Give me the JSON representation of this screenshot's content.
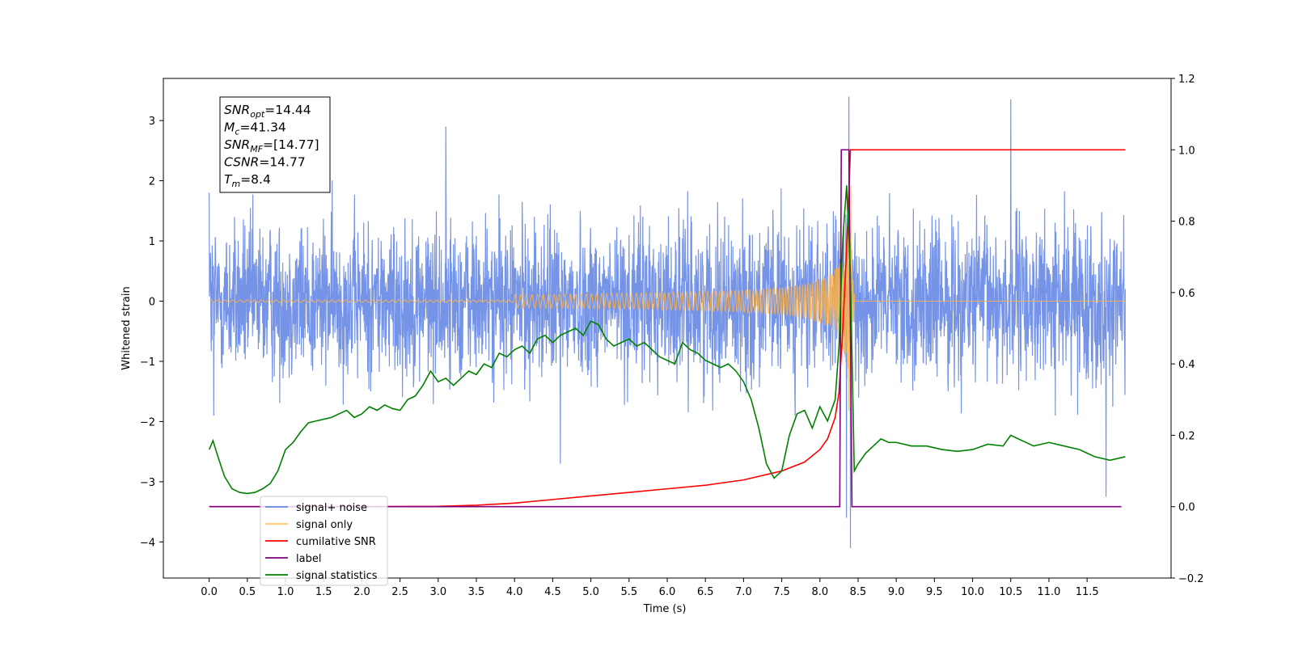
{
  "chart_data": {
    "type": "line",
    "title": "",
    "xlabel": "Time (s)",
    "ylabel": "Whitened strain",
    "xlim": [
      -0.6,
      12.6
    ],
    "ylim": [
      -4.6,
      3.7
    ],
    "y2lim": [
      -0.2,
      1.2
    ],
    "grid": false,
    "legend_position": "lower-left",
    "x_ticks": [
      0.0,
      0.5,
      1.0,
      1.5,
      2.0,
      2.5,
      3.0,
      3.5,
      4.0,
      4.5,
      5.0,
      5.5,
      6.0,
      6.5,
      7.0,
      7.5,
      8.0,
      8.5,
      9.0,
      9.5,
      10.0,
      10.5,
      11.0,
      11.5
    ],
    "x_tick_labels": [
      "0.0",
      "0.5",
      "1.0",
      "1.5",
      "2.0",
      "2.5",
      "3.0",
      "3.5",
      "4.0",
      "4.5",
      "5.0",
      "5.5",
      "6.0",
      "6.5",
      "7.0",
      "7.5",
      "8.0",
      "8.5",
      "9.0",
      "9.5",
      "10.0",
      "10.5",
      "11.0",
      "11.5"
    ],
    "y_ticks": [
      3,
      2,
      1,
      0,
      -1,
      -2,
      -3,
      -4
    ],
    "y_tick_labels": [
      "3",
      "2",
      "1",
      "0",
      "−1",
      "−2",
      "−3",
      "−4"
    ],
    "y2_ticks": [
      1.2,
      1.0,
      0.8,
      0.6,
      0.4,
      0.2,
      0.0,
      -0.2
    ],
    "y2_tick_labels": [
      "1.2",
      "1.0",
      "0.8",
      "0.6",
      "0.4",
      "0.2",
      "0.0",
      "−0.2"
    ],
    "series": [
      {
        "name": "signal+ noise",
        "axis": "left",
        "color": "#6688e6",
        "x_range": [
          0.0,
          12.0
        ],
        "typical_amplitude": 1.1,
        "extremes": [
          [
            0.0,
            1.8
          ],
          [
            0.06,
            -1.9
          ],
          [
            3.1,
            2.9
          ],
          [
            4.6,
            -2.7
          ],
          [
            8.35,
            -3.6
          ],
          [
            8.38,
            3.4
          ],
          [
            8.4,
            -4.1
          ],
          [
            10.5,
            3.35
          ],
          [
            11.75,
            -3.25
          ]
        ]
      },
      {
        "name": "signal only",
        "axis": "left",
        "color": "#ffb347",
        "merger_time": 8.4,
        "peak_amplitude": 2.85,
        "chirp_start": 4.0
      },
      {
        "name": "cumilative SNR",
        "axis": "right",
        "color": "#ff0000",
        "x": [
          0.0,
          1.0,
          2.0,
          3.0,
          3.5,
          4.0,
          4.5,
          5.0,
          5.5,
          6.0,
          6.5,
          7.0,
          7.5,
          7.8,
          8.0,
          8.1,
          8.2,
          8.25,
          8.3,
          8.35,
          8.4,
          9.0,
          10.0,
          11.0,
          12.0
        ],
        "values": [
          0.0,
          0.0,
          0.0,
          0.001,
          0.004,
          0.01,
          0.02,
          0.03,
          0.04,
          0.05,
          0.06,
          0.075,
          0.1,
          0.125,
          0.16,
          0.19,
          0.25,
          0.32,
          0.5,
          0.72,
          1.0,
          1.0,
          1.0,
          1.0,
          1.0
        ]
      },
      {
        "name": "label",
        "axis": "right",
        "color": "#800080",
        "x": [
          0.0,
          8.26,
          8.28,
          8.38,
          8.42,
          11.95
        ],
        "values": [
          0.0,
          0.0,
          1.0,
          1.0,
          0.0,
          0.0
        ]
      },
      {
        "name": "signal statistics",
        "axis": "right",
        "color": "#008000",
        "x": [
          0.0,
          0.05,
          0.1,
          0.2,
          0.3,
          0.4,
          0.5,
          0.6,
          0.7,
          0.8,
          0.9,
          1.0,
          1.1,
          1.2,
          1.3,
          1.4,
          1.5,
          1.6,
          1.7,
          1.8,
          1.9,
          2.0,
          2.1,
          2.2,
          2.3,
          2.4,
          2.5,
          2.6,
          2.7,
          2.8,
          2.9,
          3.0,
          3.1,
          3.2,
          3.3,
          3.4,
          3.5,
          3.6,
          3.7,
          3.8,
          3.9,
          4.0,
          4.1,
          4.2,
          4.3,
          4.4,
          4.5,
          4.6,
          4.7,
          4.8,
          4.9,
          5.0,
          5.1,
          5.2,
          5.3,
          5.4,
          5.5,
          5.6,
          5.7,
          5.8,
          5.9,
          6.0,
          6.1,
          6.2,
          6.3,
          6.4,
          6.5,
          6.6,
          6.7,
          6.8,
          6.9,
          7.0,
          7.1,
          7.2,
          7.3,
          7.4,
          7.5,
          7.6,
          7.7,
          7.8,
          7.9,
          8.0,
          8.1,
          8.2,
          8.25,
          8.3,
          8.35,
          8.4,
          8.45,
          8.5,
          8.6,
          8.7,
          8.8,
          8.9,
          9.0,
          9.2,
          9.4,
          9.6,
          9.8,
          10.0,
          10.2,
          10.4,
          10.5,
          10.6,
          10.8,
          11.0,
          11.2,
          11.4,
          11.5,
          11.6,
          11.8,
          12.0
        ],
        "values": [
          0.16,
          0.185,
          0.15,
          0.085,
          0.05,
          0.04,
          0.037,
          0.04,
          0.05,
          0.065,
          0.1,
          0.16,
          0.18,
          0.21,
          0.235,
          0.24,
          0.245,
          0.25,
          0.26,
          0.27,
          0.25,
          0.26,
          0.28,
          0.27,
          0.285,
          0.275,
          0.27,
          0.3,
          0.31,
          0.34,
          0.38,
          0.35,
          0.36,
          0.34,
          0.36,
          0.38,
          0.37,
          0.4,
          0.39,
          0.43,
          0.42,
          0.44,
          0.45,
          0.43,
          0.47,
          0.48,
          0.46,
          0.48,
          0.49,
          0.5,
          0.48,
          0.52,
          0.51,
          0.47,
          0.45,
          0.46,
          0.47,
          0.45,
          0.46,
          0.44,
          0.42,
          0.41,
          0.4,
          0.46,
          0.44,
          0.43,
          0.41,
          0.4,
          0.39,
          0.4,
          0.38,
          0.35,
          0.3,
          0.22,
          0.12,
          0.08,
          0.1,
          0.2,
          0.26,
          0.27,
          0.22,
          0.28,
          0.24,
          0.3,
          0.45,
          0.75,
          0.9,
          0.65,
          0.1,
          0.12,
          0.15,
          0.17,
          0.19,
          0.18,
          0.18,
          0.17,
          0.17,
          0.16,
          0.155,
          0.16,
          0.175,
          0.17,
          0.2,
          0.19,
          0.17,
          0.18,
          0.17,
          0.16,
          0.15,
          0.14,
          0.13,
          0.14
        ]
      }
    ],
    "annotation_lines": [
      {
        "label": "SNR",
        "sub": "opt",
        "value": "=14.44"
      },
      {
        "label": "M",
        "sub": "c",
        "value": "=41.34"
      },
      {
        "label": "SNR",
        "sub": "MF",
        "value": "=[14.77]"
      },
      {
        "label": "CSNR",
        "sub": "",
        "value": "=14.77"
      },
      {
        "label": "T",
        "sub": "m",
        "value": "=8.4"
      }
    ],
    "legend_entries": [
      {
        "label": "signal+ noise",
        "color": "#6688e6"
      },
      {
        "label": "signal only",
        "color": "#ffc966"
      },
      {
        "label": "cumilative SNR",
        "color": "#ff0000"
      },
      {
        "label": "label",
        "color": "#800080"
      },
      {
        "label": "signal statistics",
        "color": "#008000"
      }
    ]
  }
}
